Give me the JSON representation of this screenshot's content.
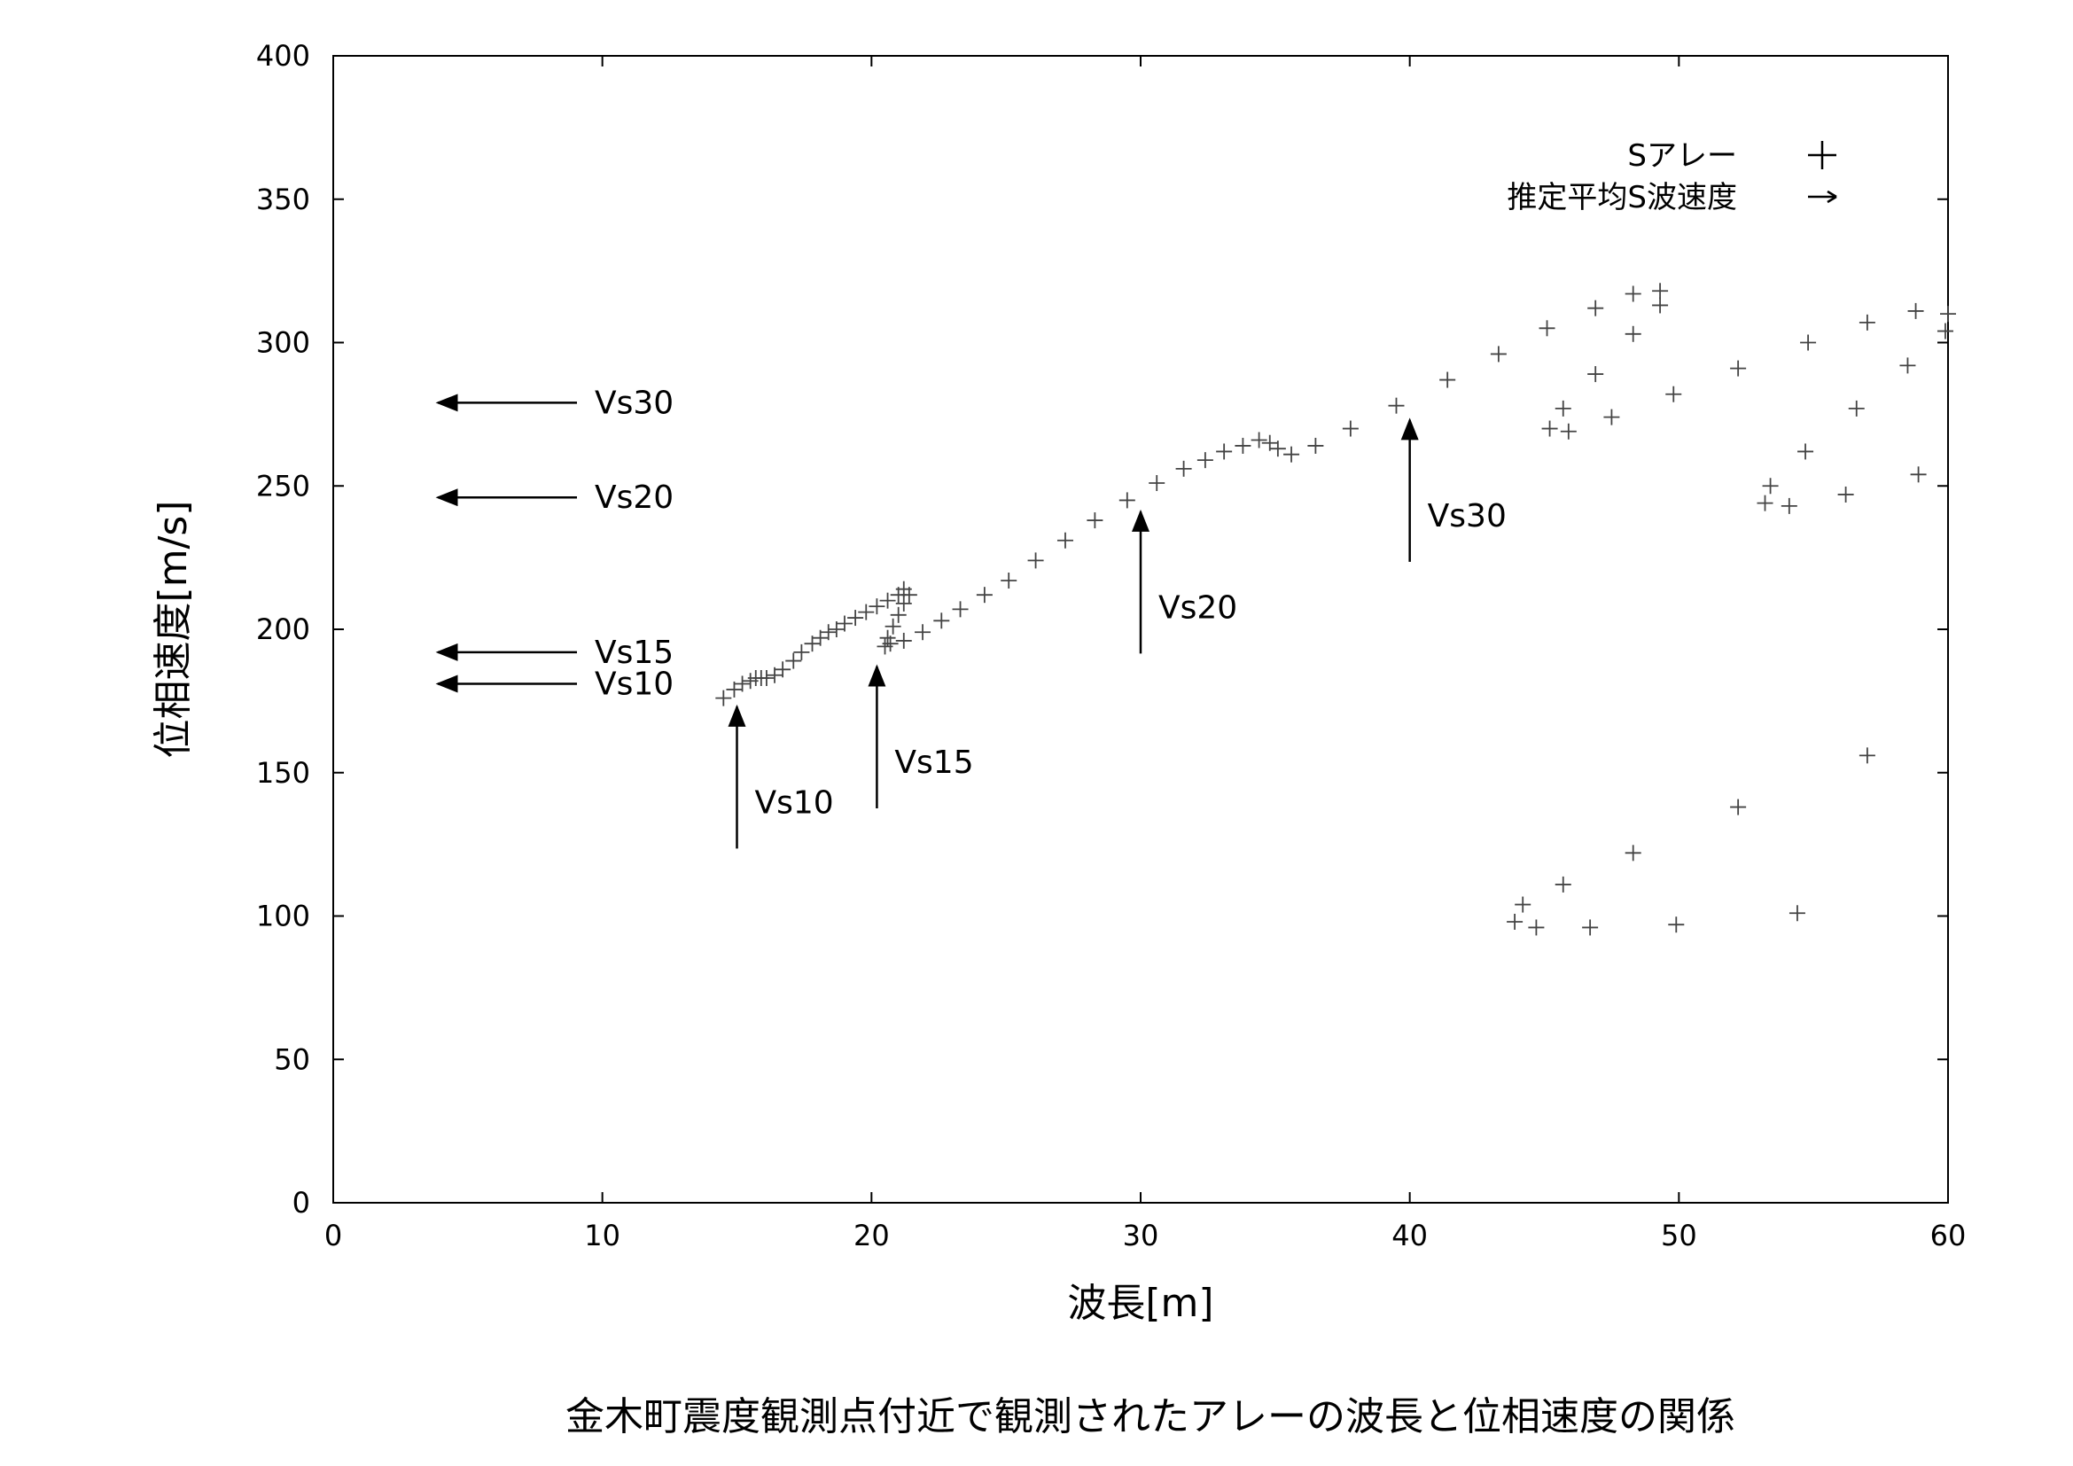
{
  "chart_data": {
    "type": "scatter",
    "xlabel": "波長[m]",
    "ylabel": "位相速度[m/s]",
    "xlim": [
      0,
      60
    ],
    "ylim": [
      0,
      400
    ],
    "xticks": [
      0,
      10,
      20,
      30,
      40,
      50,
      60
    ],
    "yticks": [
      0,
      50,
      100,
      150,
      200,
      250,
      300,
      350,
      400
    ],
    "grid": false,
    "legend_position": "top-right",
    "legend": [
      {
        "label": "Sアレー",
        "marker": "plus"
      },
      {
        "label": "推定平均S波速度",
        "marker": "arrow"
      }
    ],
    "series": [
      {
        "name": "Sアレー",
        "marker": "plus",
        "points": [
          [
            14.5,
            176
          ],
          [
            14.9,
            179
          ],
          [
            15.2,
            181
          ],
          [
            15.5,
            182
          ],
          [
            15.7,
            183
          ],
          [
            15.9,
            183
          ],
          [
            16.1,
            183
          ],
          [
            16.4,
            184
          ],
          [
            16.7,
            186
          ],
          [
            17.1,
            189
          ],
          [
            17.4,
            192
          ],
          [
            17.8,
            195
          ],
          [
            18.1,
            197
          ],
          [
            18.4,
            199
          ],
          [
            18.7,
            200
          ],
          [
            19.0,
            202
          ],
          [
            19.4,
            204
          ],
          [
            19.8,
            206
          ],
          [
            20.2,
            208
          ],
          [
            20.6,
            210
          ],
          [
            21.0,
            212
          ],
          [
            21.2,
            214
          ],
          [
            21.4,
            212
          ],
          [
            21.2,
            209
          ],
          [
            21.0,
            205
          ],
          [
            20.8,
            201
          ],
          [
            20.6,
            197
          ],
          [
            20.5,
            194
          ],
          [
            20.7,
            195
          ],
          [
            21.2,
            196
          ],
          [
            21.9,
            199
          ],
          [
            22.6,
            203
          ],
          [
            23.3,
            207
          ],
          [
            24.2,
            212
          ],
          [
            25.1,
            217
          ],
          [
            26.1,
            224
          ],
          [
            27.2,
            231
          ],
          [
            28.3,
            238
          ],
          [
            29.5,
            245
          ],
          [
            30.6,
            251
          ],
          [
            31.6,
            256
          ],
          [
            32.4,
            259
          ],
          [
            33.1,
            262
          ],
          [
            33.8,
            264
          ],
          [
            34.4,
            266
          ],
          [
            34.8,
            265
          ],
          [
            35.1,
            263
          ],
          [
            35.6,
            261
          ],
          [
            36.5,
            264
          ],
          [
            37.8,
            270
          ],
          [
            39.5,
            278
          ],
          [
            41.4,
            287
          ],
          [
            43.3,
            296
          ],
          [
            45.1,
            305
          ],
          [
            46.9,
            312
          ],
          [
            48.3,
            317
          ],
          [
            49.3,
            318
          ],
          [
            49.3,
            313
          ],
          [
            48.3,
            303
          ],
          [
            46.9,
            289
          ],
          [
            45.7,
            277
          ],
          [
            45.2,
            270
          ],
          [
            45.9,
            269
          ],
          [
            47.5,
            274
          ],
          [
            49.8,
            282
          ],
          [
            52.2,
            291
          ],
          [
            54.8,
            300
          ],
          [
            57.0,
            307
          ],
          [
            58.8,
            311
          ],
          [
            60.0,
            310
          ],
          [
            59.9,
            304
          ],
          [
            58.5,
            292
          ],
          [
            56.6,
            277
          ],
          [
            54.7,
            262
          ],
          [
            53.4,
            250
          ],
          [
            53.2,
            244
          ],
          [
            54.1,
            243
          ],
          [
            56.2,
            247
          ],
          [
            58.9,
            254
          ],
          [
            57.0,
            156
          ],
          [
            52.2,
            138
          ],
          [
            48.3,
            122
          ],
          [
            45.7,
            111
          ],
          [
            44.2,
            104
          ],
          [
            43.9,
            98
          ],
          [
            44.7,
            96
          ],
          [
            46.7,
            96
          ],
          [
            49.9,
            97
          ],
          [
            54.4,
            101
          ]
        ]
      }
    ],
    "annotations": [
      {
        "label": "Vs30",
        "direction": "left",
        "value": 279
      },
      {
        "label": "Vs20",
        "direction": "left",
        "value": 246
      },
      {
        "label": "Vs15",
        "direction": "left",
        "value": 192
      },
      {
        "label": "Vs10",
        "direction": "left",
        "value": 181
      },
      {
        "label": "Vs10",
        "direction": "up",
        "value": 15
      },
      {
        "label": "Vs15",
        "direction": "up",
        "value": 20.2
      },
      {
        "label": "Vs20",
        "direction": "up",
        "value": 30
      },
      {
        "label": "Vs30",
        "direction": "up",
        "value": 40
      }
    ],
    "caption": "金木町震度観測点付近で観測されたアレーの波長と位相速度の関係"
  }
}
